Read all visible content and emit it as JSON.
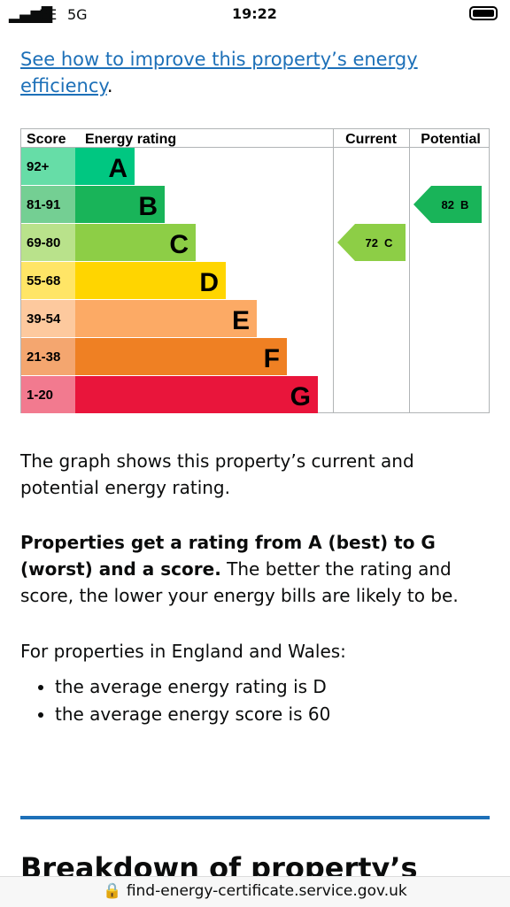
{
  "status_bar": {
    "carrier": "EE",
    "network": "5G",
    "time": "19:22"
  },
  "improve_link": {
    "text": "See how to improve this property’s energy efficiency",
    "suffix": "."
  },
  "rating_chart": {
    "headers": {
      "score": "Score",
      "rating": "Energy rating",
      "current": "Current",
      "potential": "Potential"
    },
    "bands": [
      {
        "score": "92+",
        "letter": "A"
      },
      {
        "score": "81-91",
        "letter": "B"
      },
      {
        "score": "69-80",
        "letter": "C"
      },
      {
        "score": "55-68",
        "letter": "D"
      },
      {
        "score": "39-54",
        "letter": "E"
      },
      {
        "score": "21-38",
        "letter": "F"
      },
      {
        "score": "1-20",
        "letter": "G"
      }
    ],
    "current": {
      "score": 72,
      "band": "C"
    },
    "potential": {
      "score": 82,
      "band": "B"
    }
  },
  "body": {
    "paragraph_1": "The graph shows this property’s current and potential energy rating.",
    "paragraph_2_bold": "Properties get a rating from A (best) to G (worst) and a score.",
    "paragraph_2_rest": " The better the rating and score, the lower your energy bills are likely to be.",
    "paragraph_3": "For properties in England and Wales:",
    "bullets": [
      "the average energy rating is D",
      "the average energy score is 60"
    ],
    "next_heading": "Breakdown of property’s"
  },
  "address_bar": {
    "url": "find-energy-certificate.service.gov.uk"
  }
}
